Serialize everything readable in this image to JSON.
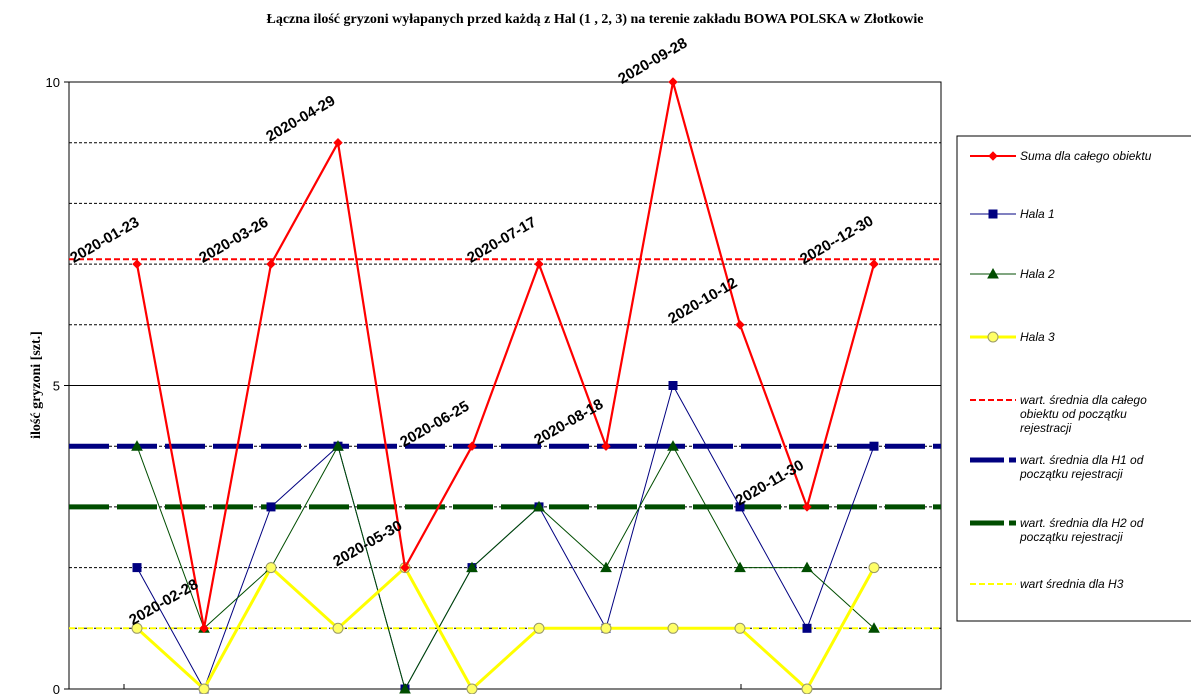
{
  "chart_data": {
    "type": "line",
    "title": "Łączna ilość gryzoni wyłapanych przed każdą z Hal (1 , 2,  3)  na terenie zakładu BOWA POLSKA w Złotkowie",
    "xlabel": "",
    "ylabel": "ilość gryzoni [szt.]",
    "ylim": [
      0,
      10
    ],
    "yticks": [
      0,
      5,
      10
    ],
    "gridlines": [
      1,
      2,
      3,
      4,
      6,
      7,
      8,
      9
    ],
    "grid": true,
    "legend_position": "right",
    "x": [
      1,
      2,
      3,
      4,
      5,
      6,
      7,
      8,
      9,
      10,
      11,
      12
    ],
    "series": [
      {
        "name": "Suma dla całego obiektu",
        "color": "#ff0000",
        "marker": "diamond",
        "values": [
          7,
          1,
          7,
          9,
          2,
          4,
          7,
          4,
          10,
          6,
          3,
          7
        ],
        "data_labels": [
          "2020-01-23",
          "2020-02-28",
          "2020-03-26",
          "2020-04-29",
          "2020-05-30",
          "2020-06-25",
          "2020-07-17",
          "2020-08-18",
          "2020-09-28",
          "2020-10-12",
          "2020-11-30",
          "2020--12-30"
        ]
      },
      {
        "name": "Hala 1",
        "color": "#000080",
        "marker": "square",
        "values": [
          2,
          0,
          3,
          4,
          0,
          2,
          3,
          1,
          5,
          3,
          1,
          4
        ]
      },
      {
        "name": "Hala 2",
        "color": "#004d00",
        "marker": "triangle",
        "values": [
          4,
          1,
          2,
          4,
          0,
          2,
          3,
          2,
          4,
          2,
          2,
          1
        ]
      },
      {
        "name": "Hala 3",
        "color": "#ffff00",
        "marker": "circle",
        "values": [
          1,
          0,
          2,
          1,
          2,
          0,
          1,
          1,
          1,
          1,
          0,
          2
        ]
      },
      {
        "name": "wart. średnia dla całego obiektu od początku rejestracji",
        "color": "#ff0000",
        "style": "dashed",
        "value": 7.08
      },
      {
        "name": "wart. średnia dla H1 od początku rejestracji",
        "color": "#000080",
        "style": "dashed-thick",
        "value": 4
      },
      {
        "name": "wart. średnia dla H2 od początku rejestracji",
        "color": "#004d00",
        "style": "dashed-thick",
        "value": 3
      },
      {
        "name": "wart  średnia dla H3",
        "color": "#ffff00",
        "style": "dashed",
        "value": 1
      }
    ],
    "legend": [
      {
        "lines": [
          "Suma dla całego obiektu"
        ]
      },
      {
        "lines": [
          "Hala 1"
        ]
      },
      {
        "lines": [
          "Hala 2"
        ]
      },
      {
        "lines": [
          "Hala 3"
        ]
      },
      {
        "lines": [
          "wart. średnia dla całego",
          "obiektu od początku",
          "rejestracji"
        ]
      },
      {
        "lines": [
          "wart. średnia dla H1 od",
          "początku rejestracji"
        ]
      },
      {
        "lines": [
          "wart. średnia dla H2 od",
          "początku rejestracji"
        ]
      },
      {
        "lines": [
          "wart  średnia dla H3"
        ]
      }
    ]
  }
}
